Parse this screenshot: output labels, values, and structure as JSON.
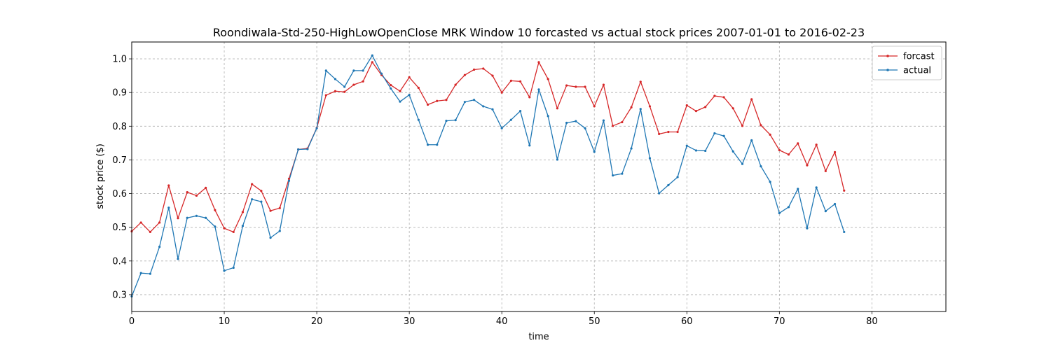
{
  "chart_data": {
    "type": "line",
    "title": "Roondiwala-Std-250-HighLowOpenClose MRK Window 10 forcasted vs actual stock prices 2007-01-01 to 2016-02-23",
    "xlabel": "time",
    "ylabel": "stock price ($)",
    "xlim": [
      0,
      88
    ],
    "ylim": [
      0.25,
      1.05
    ],
    "xticks": [
      0,
      10,
      20,
      30,
      40,
      50,
      60,
      70,
      80
    ],
    "yticks": [
      0.3,
      0.4,
      0.5,
      0.6,
      0.7,
      0.8,
      0.9,
      1.0
    ],
    "xtick_labels": [
      "0",
      "10",
      "20",
      "30",
      "40",
      "50",
      "60",
      "70",
      "80"
    ],
    "ytick_labels": [
      "0.3",
      "0.4",
      "0.5",
      "0.6",
      "0.7",
      "0.8",
      "0.9",
      "1.0"
    ],
    "grid": true,
    "legend_position": "top-right",
    "series": [
      {
        "name": "forcast",
        "color": "#d62728",
        "values": [
          0.488,
          0.514,
          0.486,
          0.514,
          0.624,
          0.527,
          0.604,
          0.594,
          0.617,
          0.551,
          0.497,
          0.486,
          0.545,
          0.628,
          0.608,
          0.549,
          0.557,
          0.644,
          0.731,
          0.734,
          0.795,
          0.892,
          0.904,
          0.902,
          0.923,
          0.933,
          0.99,
          0.952,
          0.922,
          0.904,
          0.945,
          0.914,
          0.864,
          0.875,
          0.878,
          0.923,
          0.952,
          0.968,
          0.971,
          0.95,
          0.9,
          0.935,
          0.933,
          0.886,
          0.99,
          0.94,
          0.853,
          0.921,
          0.917,
          0.917,
          0.859,
          0.923,
          0.801,
          0.812,
          0.856,
          0.932,
          0.859,
          0.777,
          0.783,
          0.783,
          0.862,
          0.845,
          0.857,
          0.89,
          0.886,
          0.853,
          0.801,
          0.88,
          0.803,
          0.775,
          0.729,
          0.716,
          0.749,
          0.684,
          0.745,
          0.667,
          0.723,
          0.609
        ]
      },
      {
        "name": "actual",
        "color": "#1f77b4",
        "values": [
          0.295,
          0.364,
          0.362,
          0.442,
          0.558,
          0.406,
          0.528,
          0.534,
          0.528,
          0.502,
          0.371,
          0.38,
          0.504,
          0.583,
          0.576,
          0.469,
          0.489,
          0.638,
          0.731,
          0.732,
          0.794,
          0.965,
          0.94,
          0.917,
          0.965,
          0.965,
          1.01,
          0.956,
          0.912,
          0.873,
          0.893,
          0.819,
          0.745,
          0.745,
          0.816,
          0.818,
          0.872,
          0.878,
          0.859,
          0.85,
          0.794,
          0.819,
          0.845,
          0.743,
          0.909,
          0.83,
          0.701,
          0.81,
          0.815,
          0.794,
          0.724,
          0.817,
          0.654,
          0.659,
          0.734,
          0.851,
          0.705,
          0.601,
          0.625,
          0.649,
          0.742,
          0.728,
          0.727,
          0.779,
          0.771,
          0.725,
          0.688,
          0.758,
          0.681,
          0.635,
          0.542,
          0.56,
          0.614,
          0.497,
          0.618,
          0.548,
          0.569,
          0.486
        ]
      }
    ]
  }
}
